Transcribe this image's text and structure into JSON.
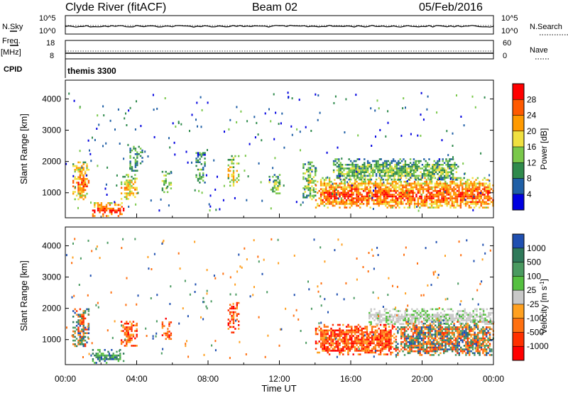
{
  "header": {
    "station": "Clyde River (fitACF)",
    "beam": "Beam 02",
    "date": "05/Feb/2016"
  },
  "strips": {
    "nsky_label": "N.Sky",
    "nsky_scale": [
      "10^5",
      "10^0"
    ],
    "nsearch_label": "N.Search",
    "nsearch_scale": [
      "10^5",
      "10^0"
    ],
    "freq_label": "Freq.",
    "freq_unit": "[MHz]",
    "freq_scale": [
      "18",
      "8"
    ],
    "nave_label": "Nave",
    "nave_scale": [
      "60",
      "0"
    ],
    "cpid_label": "CPID",
    "cpid_value": "themis 3300"
  },
  "chart_data": [
    {
      "type": "heatmap",
      "parameter": "power",
      "ylabel": "Slant Range [km]",
      "ylim": [
        200,
        4600
      ],
      "yticks": [
        "1000",
        "2000",
        "3000",
        "4000"
      ],
      "xlim": [
        0,
        24
      ],
      "colorbar_label": "Power [dB]",
      "colorbar_ticks": [
        "28",
        "24",
        "20",
        "16",
        "12",
        "8",
        "4"
      ],
      "colorbar_colors": [
        "#ff0000",
        "#ff5a00",
        "#ff9a00",
        "#f0e040",
        "#7ac84a",
        "#2f8a4c",
        "#1f5fa6",
        "#0000e0"
      ],
      "echo_regions": [
        {
          "t": [
            0.4,
            1.3
          ],
          "r": [
            800,
            2000
          ],
          "level": 0.8
        },
        {
          "t": [
            1.5,
            3.3
          ],
          "r": [
            250,
            700
          ],
          "level": 0.9
        },
        {
          "t": [
            3.1,
            4.0
          ],
          "r": [
            800,
            1600
          ],
          "level": 0.7
        },
        {
          "t": [
            3.6,
            4.3
          ],
          "r": [
            1700,
            2500
          ],
          "level": 0.4
        },
        {
          "t": [
            5.4,
            5.9
          ],
          "r": [
            1000,
            1700
          ],
          "level": 0.5
        },
        {
          "t": [
            7.3,
            7.8
          ],
          "r": [
            1300,
            2300
          ],
          "level": 0.4
        },
        {
          "t": [
            9.1,
            9.7
          ],
          "r": [
            1200,
            2200
          ],
          "level": 0.6
        },
        {
          "t": [
            11.4,
            12.0
          ],
          "r": [
            1000,
            1600
          ],
          "level": 0.5
        },
        {
          "t": [
            13.3,
            14.0
          ],
          "r": [
            800,
            2000
          ],
          "level": 0.5
        },
        {
          "t": [
            14.0,
            24.0
          ],
          "r": [
            500,
            1500
          ],
          "level": 0.85
        },
        {
          "t": [
            15.0,
            22.0
          ],
          "r": [
            1400,
            2100
          ],
          "level": 0.45
        }
      ]
    },
    {
      "type": "heatmap",
      "parameter": "velocity",
      "ylabel": "Slant Range [km]",
      "ylim": [
        200,
        4600
      ],
      "yticks": [
        "1000",
        "2000",
        "3000",
        "4000"
      ],
      "xlim": [
        0,
        24
      ],
      "xticks": [
        "00:00",
        "04:00",
        "08:00",
        "12:00",
        "16:00",
        "20:00",
        "00:00"
      ],
      "xlabel": "Time UT",
      "colorbar_label": "Velocity [m s",
      "colorbar_label_sup": "-1",
      "colorbar_label_end": "]",
      "colorbar_ticks": [
        "1000",
        "500",
        "100",
        "25",
        "-25",
        "-100",
        "-500",
        "-1000"
      ],
      "colorbar_colors": [
        "#1f4fb0",
        "#2f7a5a",
        "#4a9a60",
        "#55c040",
        "#c8c8c8",
        "#ffa020",
        "#ff7010",
        "#ff3000",
        "#ff0000"
      ],
      "echo_regions": [
        {
          "t": [
            0.4,
            1.3
          ],
          "r": [
            800,
            2000
          ],
          "v": "mixed"
        },
        {
          "t": [
            1.5,
            3.3
          ],
          "r": [
            250,
            700
          ],
          "v": "positive"
        },
        {
          "t": [
            3.1,
            4.0
          ],
          "r": [
            800,
            1600
          ],
          "v": "negative"
        },
        {
          "t": [
            5.4,
            5.9
          ],
          "r": [
            1000,
            1700
          ],
          "v": "negative"
        },
        {
          "t": [
            9.1,
            9.7
          ],
          "r": [
            1200,
            2200
          ],
          "v": "negative"
        },
        {
          "t": [
            14.0,
            18.5
          ],
          "r": [
            500,
            1500
          ],
          "v": "negative"
        },
        {
          "t": [
            18.5,
            24.0
          ],
          "r": [
            500,
            1600
          ],
          "v": "mixed"
        },
        {
          "t": [
            17.0,
            24.0
          ],
          "r": [
            1500,
            2000
          ],
          "v": "ground"
        }
      ]
    }
  ]
}
